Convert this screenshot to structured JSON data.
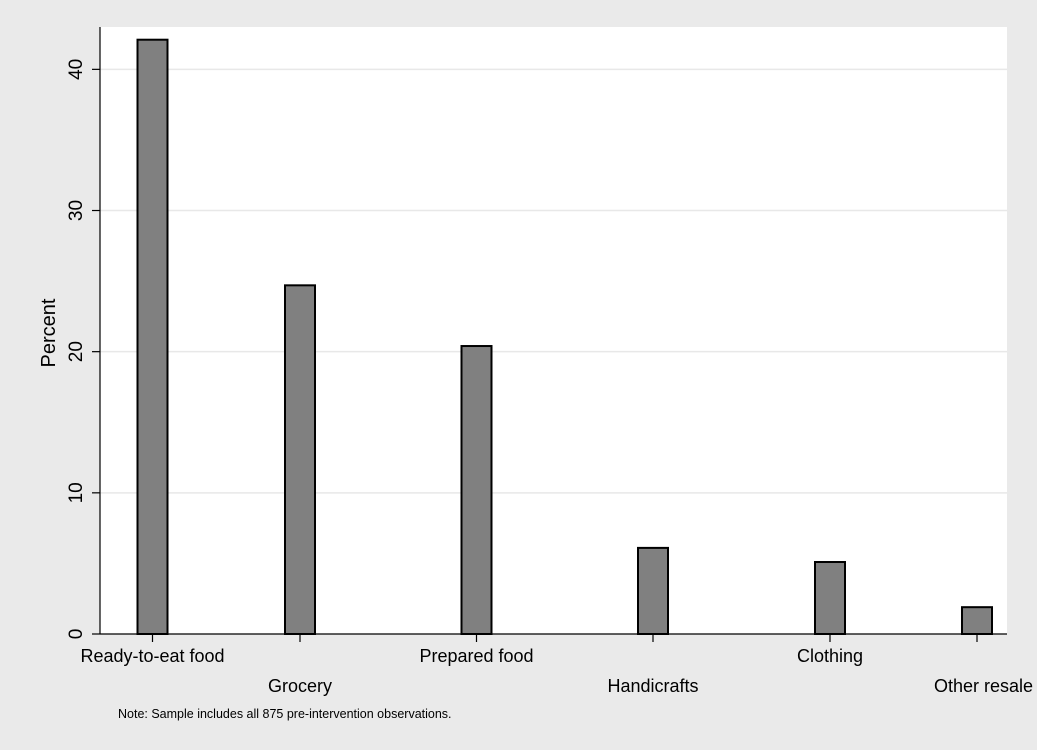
{
  "chart_data": {
    "type": "bar",
    "categories": [
      "Ready-to-eat food",
      "Grocery",
      "Prepared food",
      "Handicrafts",
      "Clothing",
      "Other resale"
    ],
    "values": [
      42.1,
      24.7,
      20.4,
      6.1,
      5.1,
      1.9
    ],
    "title": "",
    "xlabel": "",
    "ylabel": "Percent",
    "ylim": [
      0,
      43
    ],
    "yticks": [
      0,
      10,
      20,
      30,
      40
    ],
    "grid": true,
    "legend": "none",
    "note": "Note: Sample includes all 875 pre-intervention observations.",
    "colors": {
      "bar_fill": "#808080",
      "bar_stroke": "#000000",
      "plot_background": "#ffffff",
      "outer_background": "#eaeaea",
      "gridline": "#e8e8e8"
    }
  }
}
